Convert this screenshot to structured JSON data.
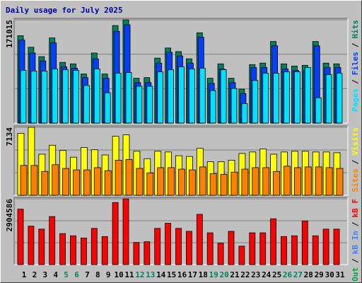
{
  "chart_data": [
    {
      "type": "bar",
      "title": "Daily usage for July 2025",
      "title_color": "#0000a0",
      "ylim": [
        0,
        171015
      ],
      "yticks": [
        171015
      ],
      "legend_separator": "/",
      "series": [
        {
          "name": "Hits",
          "color": "#00805c",
          "values": [
            144700,
            125600,
            110000,
            141100,
            100500,
            98100,
            81300,
            116000,
            81300,
            161500,
            171015,
            74200,
            75300,
            107600,
            124400,
            118400,
            106400,
            149500,
            74200,
            98100,
            74200,
            56200,
            96900,
            99300,
            135100,
            98100,
            94500,
            95700,
            135100,
            99300,
            98100
          ]
        },
        {
          "name": "Files",
          "color": "#0040ff",
          "values": [
            137500,
            116000,
            102900,
            132800,
            93300,
            90900,
            75300,
            106400,
            74200,
            151900,
            162700,
            67000,
            67000,
            99300,
            117200,
            111200,
            99300,
            142300,
            65800,
            89700,
            67000,
            49000,
            92100,
            92100,
            128000,
            89700,
            87300,
            87300,
            128000,
            92100,
            92100
          ]
        },
        {
          "name": "Pages",
          "color": "#00e0ff",
          "values": [
            87300,
            86100,
            86100,
            89700,
            88500,
            87300,
            62200,
            89700,
            50200,
            82500,
            83700,
            61000,
            61000,
            84900,
            88500,
            93300,
            89700,
            90900,
            53800,
            88500,
            57400,
            32300,
            70600,
            82500,
            82500,
            84900,
            84900,
            92100,
            41900,
            80100,
            82500
          ]
        }
      ]
    },
    {
      "type": "bar",
      "ylim": [
        0,
        7134
      ],
      "yticks": [
        7134
      ],
      "legend_separator": "/",
      "series": [
        {
          "name": "Visits",
          "color": "#ffff00",
          "values": [
            6507,
            7134,
            4312,
            5253,
            4704,
            3998,
            5018,
            4782,
            4234,
            6194,
            6350,
            4626,
            3842,
            4626,
            4547,
            4155,
            4077,
            4939,
            3528,
            3528,
            3685,
            4390,
            4547,
            4861,
            4312,
            4547,
            4626,
            4626,
            4547,
            4547,
            4469
          ]
        },
        {
          "name": "Sites",
          "color": "#ff8000",
          "values": [
            3136,
            3136,
            2509,
            3214,
            2822,
            2666,
            2666,
            2901,
            2587,
            3685,
            3763,
            2822,
            2352,
            2901,
            2901,
            2744,
            2666,
            2979,
            2274,
            2195,
            2430,
            2744,
            2901,
            2901,
            2509,
            3058,
            2901,
            2979,
            2979,
            2901,
            2822
          ]
        }
      ]
    },
    {
      "type": "bar",
      "ylim": [
        0,
        2904586
      ],
      "yticks": [
        2904586
      ],
      "legend_separator": "/",
      "categories": [
        "1",
        "2",
        "3",
        "4",
        "5",
        "6",
        "7",
        "8",
        "9",
        "10",
        "11",
        "12",
        "13",
        "14",
        "15",
        "16",
        "17",
        "18",
        "19",
        "20",
        "21",
        "22",
        "23",
        "24",
        "25",
        "26",
        "27",
        "28",
        "29",
        "30",
        "31"
      ],
      "category_colors": [
        "#000",
        "#000",
        "#000",
        "#000",
        "#00805c",
        "#00805c",
        "#000",
        "#000",
        "#000",
        "#000",
        "#000",
        "#00805c",
        "#00805c",
        "#000",
        "#000",
        "#000",
        "#000",
        "#000",
        "#00805c",
        "#00805c",
        "#000",
        "#000",
        "#000",
        "#000",
        "#000",
        "#00805c",
        "#00805c",
        "#000",
        "#000",
        "#000",
        "#000"
      ],
      "series": [
        {
          "name": "kB F",
          "color": "#ff0000",
          "values": [
            2447700,
            1697100,
            1566500,
            2121300,
            1370700,
            1272800,
            1174900,
            1599200,
            1240200,
            2741400,
            2904586,
            979100,
            1011700,
            1599200,
            1827600,
            1599200,
            1468600,
            2219200,
            1403300,
            946400,
            1468600,
            815900,
            1403300,
            1403300,
            2023400,
            1240200,
            1272800,
            1925500,
            1272800,
            1566500,
            1566500
          ]
        }
      ],
      "legend_extra": [
        {
          "name": "kB In",
          "color": "#4080ff"
        },
        {
          "name": "kB Out",
          "color": "#00a040"
        }
      ]
    }
  ]
}
